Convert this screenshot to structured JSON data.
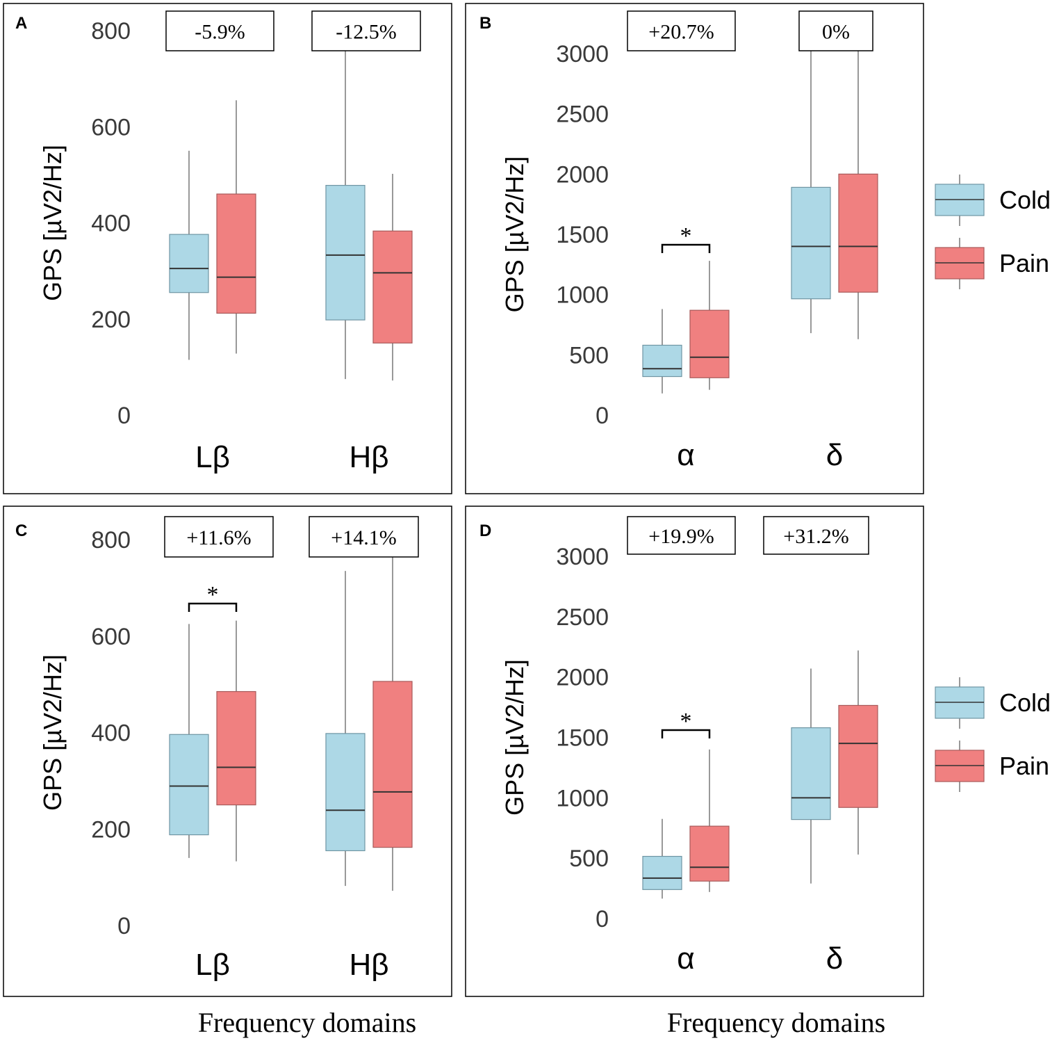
{
  "colors": {
    "cold": "#add8e6",
    "pain": "#f08080",
    "whisker": "#999999",
    "median": "#333333",
    "frame": "#000000"
  },
  "legend": {
    "items": [
      {
        "label": "Cold",
        "color": "#add8e6"
      },
      {
        "label": "Pain",
        "color": "#f08080"
      }
    ]
  },
  "xlabel": "Frequency domains",
  "chart_data": [
    {
      "type": "box",
      "panel": "A",
      "ylabel": "GPS [µV2/Hz]",
      "ylim": [
        0,
        800
      ],
      "yticks": [
        0,
        200,
        400,
        600,
        800
      ],
      "categories": [
        "Lβ",
        "Hβ"
      ],
      "annotations": [
        "-5.9%",
        "-12.5%"
      ],
      "significance": [],
      "series": [
        {
          "name": "Cold",
          "boxes": [
            {
              "min": 115,
              "q1": 255,
              "median": 305,
              "q3": 376,
              "max": 550
            },
            {
              "min": 75,
              "q1": 198,
              "median": 333,
              "q3": 478,
              "max": 775
            }
          ]
        },
        {
          "name": "Pain",
          "boxes": [
            {
              "min": 128,
              "q1": 212,
              "median": 287,
              "q3": 460,
              "max": 655
            },
            {
              "min": 72,
              "q1": 150,
              "median": 296,
              "q3": 383,
              "max": 502
            }
          ]
        }
      ]
    },
    {
      "type": "box",
      "panel": "B",
      "ylabel": "GPS [µV2/Hz]",
      "ylim": [
        0,
        3000
      ],
      "yticks": [
        0,
        500,
        1000,
        1500,
        2000,
        2500,
        3000
      ],
      "categories": [
        "α",
        "δ"
      ],
      "annotations": [
        "+20.7%",
        "0%"
      ],
      "significance": [
        {
          "category": "α",
          "label": "*"
        }
      ],
      "series": [
        {
          "name": "Cold",
          "boxes": [
            {
              "min": 180,
              "q1": 320,
              "median": 385,
              "q3": 580,
              "max": 880
            },
            {
              "min": 680,
              "q1": 965,
              "median": 1400,
              "q3": 1890,
              "max": 3080
            }
          ]
        },
        {
          "name": "Pain",
          "boxes": [
            {
              "min": 210,
              "q1": 310,
              "median": 480,
              "q3": 870,
              "max": 1280
            },
            {
              "min": 630,
              "q1": 1020,
              "median": 1400,
              "q3": 2000,
              "max": 3200
            }
          ]
        }
      ]
    },
    {
      "type": "box",
      "panel": "C",
      "ylabel": "GPS [µV2/Hz]",
      "ylim": [
        0,
        800
      ],
      "yticks": [
        0,
        200,
        400,
        600,
        800
      ],
      "categories": [
        "Lβ",
        "Hβ"
      ],
      "annotations": [
        "+11.6%",
        "+14.1%"
      ],
      "significance": [
        {
          "category": "Lβ",
          "label": "*"
        }
      ],
      "series": [
        {
          "name": "Cold",
          "boxes": [
            {
              "min": 140,
              "q1": 188,
              "median": 289,
              "q3": 396,
              "max": 625
            },
            {
              "min": 82,
              "q1": 155,
              "median": 239,
              "q3": 398,
              "max": 735
            }
          ]
        },
        {
          "name": "Pain",
          "boxes": [
            {
              "min": 133,
              "q1": 250,
              "median": 328,
              "q3": 485,
              "max": 632
            },
            {
              "min": 72,
              "q1": 162,
              "median": 277,
              "q3": 506,
              "max": 790
            }
          ]
        }
      ]
    },
    {
      "type": "box",
      "panel": "D",
      "ylabel": "GPS [µV2/Hz]",
      "ylim": [
        0,
        3000
      ],
      "yticks": [
        0,
        500,
        1000,
        1500,
        2000,
        2500,
        3000
      ],
      "categories": [
        "α",
        "δ"
      ],
      "annotations": [
        "+19.9%",
        "+31.2%"
      ],
      "significance": [
        {
          "category": "α",
          "label": "*"
        }
      ],
      "series": [
        {
          "name": "Cold",
          "boxes": [
            {
              "min": 165,
              "q1": 240,
              "median": 335,
              "q3": 515,
              "max": 825
            },
            {
              "min": 290,
              "q1": 820,
              "median": 1000,
              "q3": 1580,
              "max": 2070
            }
          ]
        },
        {
          "name": "Pain",
          "boxes": [
            {
              "min": 220,
              "q1": 310,
              "median": 425,
              "q3": 765,
              "max": 1400
            },
            {
              "min": 530,
              "q1": 920,
              "median": 1450,
              "q3": 1765,
              "max": 2220
            }
          ]
        }
      ]
    }
  ]
}
